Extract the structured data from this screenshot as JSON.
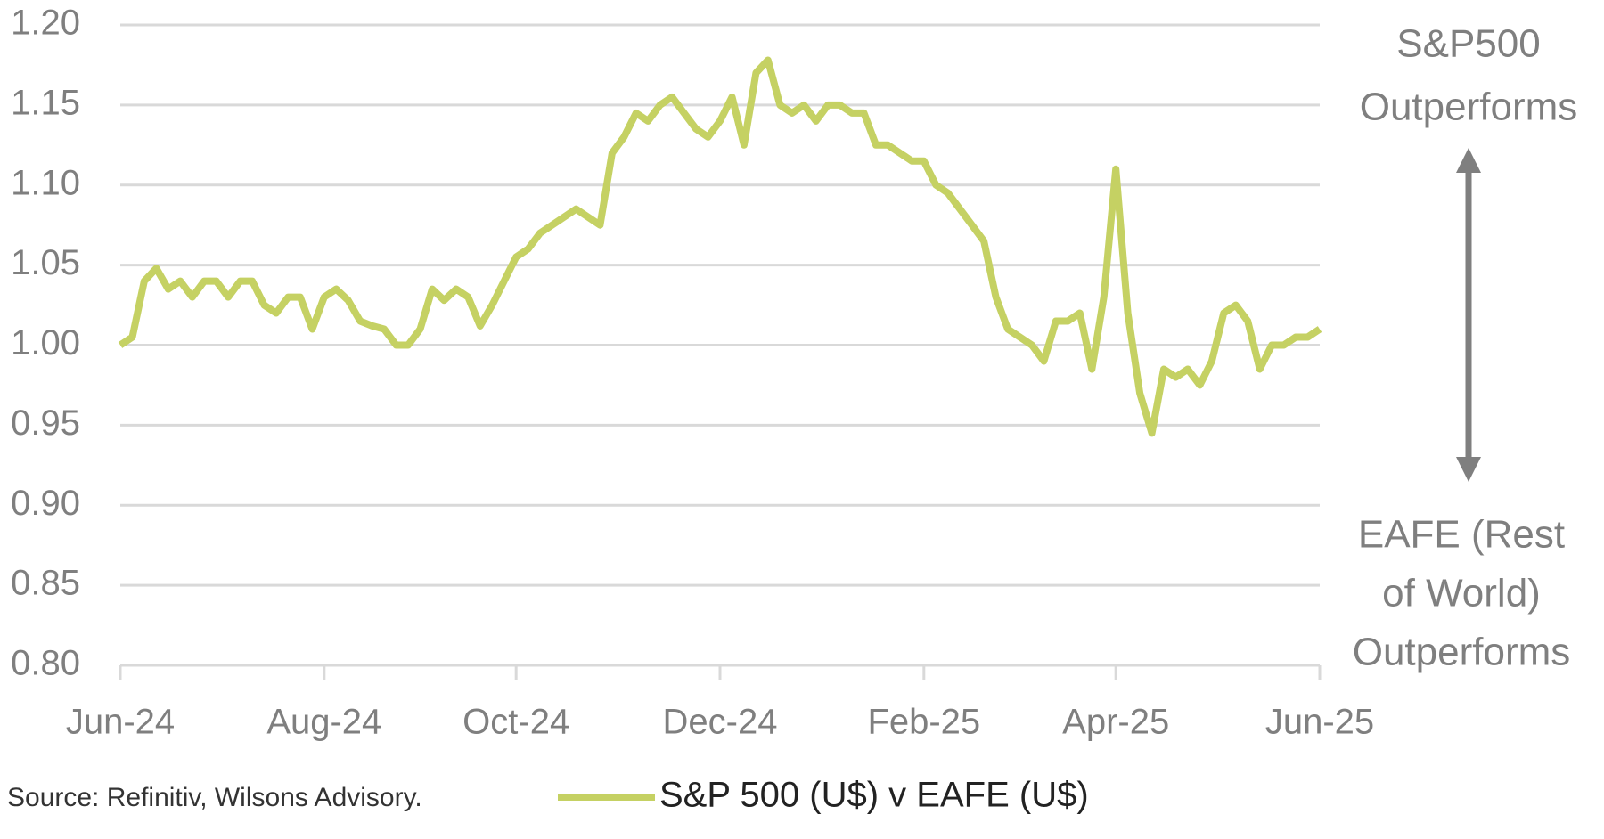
{
  "chart_data": {
    "type": "line",
    "categories": [
      "Jun-24",
      null,
      null,
      null,
      null,
      null,
      null,
      null,
      null,
      null,
      null,
      null,
      null,
      null,
      null,
      null,
      null,
      "Aug-24",
      null,
      null,
      null,
      null,
      null,
      null,
      null,
      null,
      null,
      null,
      null,
      null,
      null,
      null,
      null,
      "Oct-24",
      null,
      null,
      null,
      null,
      null,
      null,
      null,
      null,
      null,
      null,
      null,
      null,
      null,
      null,
      null,
      null,
      "Dec-24",
      null,
      null,
      null,
      null,
      null,
      null,
      null,
      null,
      null,
      null,
      null,
      null,
      null,
      null,
      null,
      null,
      "Feb-25",
      null,
      null,
      null,
      null,
      null,
      null,
      null,
      null,
      null,
      null,
      null,
      null,
      null,
      null,
      null,
      "Apr-25",
      null,
      null,
      null,
      null,
      null,
      null,
      null,
      null,
      null,
      null,
      null,
      null,
      null,
      null,
      null,
      null,
      "Jun-25"
    ],
    "series": [
      {
        "name": "S&P 500 (U$) v EAFE (U$)",
        "color": "#c5d163",
        "values": [
          1.0,
          1.005,
          1.04,
          1.048,
          1.035,
          1.04,
          1.03,
          1.04,
          1.04,
          1.03,
          1.04,
          1.04,
          1.025,
          1.02,
          1.03,
          1.03,
          1.01,
          1.03,
          1.035,
          1.028,
          1.015,
          1.012,
          1.01,
          1.0,
          1.0,
          1.01,
          1.035,
          1.028,
          1.035,
          1.03,
          1.012,
          1.025,
          1.04,
          1.055,
          1.06,
          1.07,
          1.075,
          1.08,
          1.085,
          1.08,
          1.075,
          1.12,
          1.13,
          1.145,
          1.14,
          1.15,
          1.155,
          1.145,
          1.135,
          1.13,
          1.14,
          1.155,
          1.125,
          1.17,
          1.178,
          1.15,
          1.145,
          1.15,
          1.14,
          1.15,
          1.15,
          1.145,
          1.145,
          1.125,
          1.125,
          1.12,
          1.115,
          1.115,
          1.1,
          1.095,
          1.085,
          1.075,
          1.065,
          1.03,
          1.01,
          1.005,
          1.0,
          0.99,
          1.015,
          1.015,
          1.02,
          0.985,
          1.03,
          1.11,
          1.02,
          0.97,
          0.945,
          0.985,
          0.98,
          0.985,
          0.975,
          0.99,
          1.02,
          1.025,
          1.015,
          0.985,
          1.0,
          1.0,
          1.005,
          1.005,
          1.01
        ]
      }
    ],
    "ylim": [
      0.8,
      1.2
    ],
    "yticks": [
      {
        "value": 0.8,
        "label": "0.80"
      },
      {
        "value": 0.85,
        "label": "0.85"
      },
      {
        "value": 0.9,
        "label": "0.90"
      },
      {
        "value": 0.95,
        "label": "0.95"
      },
      {
        "value": 1.0,
        "label": "1.00"
      },
      {
        "value": 1.05,
        "label": "1.05"
      },
      {
        "value": 1.1,
        "label": "1.10"
      },
      {
        "value": 1.15,
        "label": "1.15"
      },
      {
        "value": 1.2,
        "label": "1.20"
      }
    ],
    "grid": true,
    "annotation_top": [
      "S&P500",
      "Outperforms"
    ],
    "annotation_bottom": [
      "EAFE (Rest",
      "of World)",
      "Outperforms"
    ],
    "source": "Source: Refinitiv, Wilsons Advisory."
  }
}
